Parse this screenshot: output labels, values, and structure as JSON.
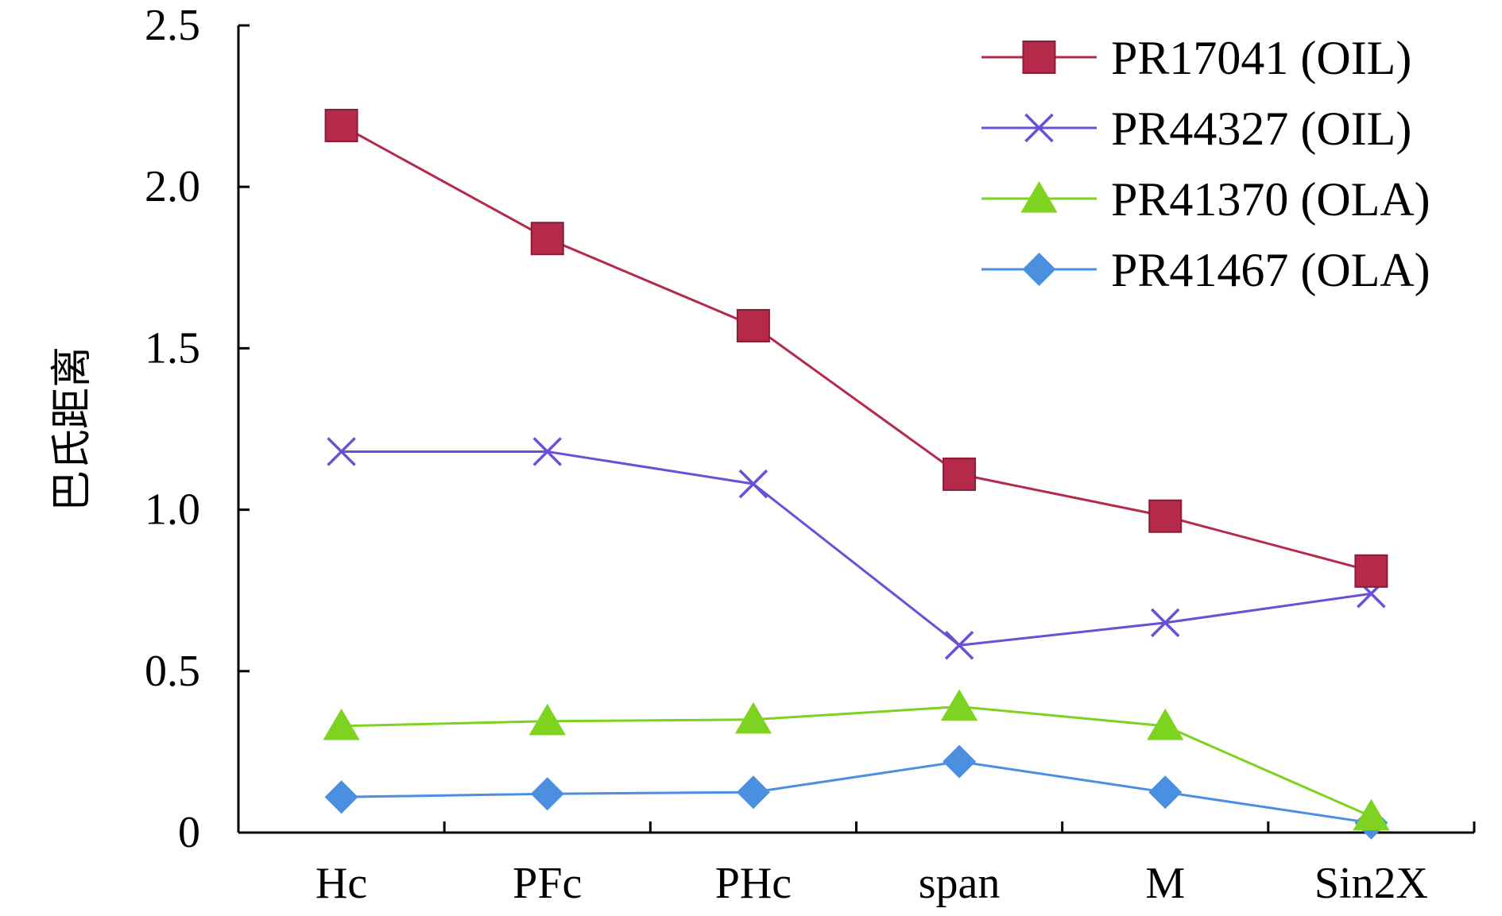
{
  "chart_data": {
    "type": "line",
    "title": "",
    "xlabel": "",
    "ylabel": "巴氏距离",
    "categories": [
      "Hc",
      "PFc",
      "PHc",
      "span",
      "M",
      "Sin2X"
    ],
    "ylim": [
      0,
      2.5
    ],
    "yticks": [
      0,
      0.5,
      1.0,
      1.5,
      2.0,
      2.5
    ],
    "ytick_labels": [
      "0",
      "0.5",
      "1.0",
      "1.5",
      "2.0",
      "2.5"
    ],
    "grid": false,
    "legend_position": "top-right",
    "series": [
      {
        "name": "PR17041 (OIL)",
        "marker": "square",
        "color": "#b5294a",
        "values": [
          2.19,
          1.84,
          1.57,
          1.11,
          0.98,
          0.81
        ]
      },
      {
        "name": "PR44327 (OIL)",
        "marker": "x",
        "color": "#6b4fd8",
        "values": [
          1.18,
          1.18,
          1.08,
          0.58,
          0.65,
          0.74
        ]
      },
      {
        "name": "PR41370 (OLA)",
        "marker": "triangle",
        "color": "#7ed321",
        "values": [
          0.33,
          0.345,
          0.35,
          0.39,
          0.33,
          0.05
        ]
      },
      {
        "name": "PR41467 (OLA)",
        "marker": "diamond",
        "color": "#4a8fe0",
        "values": [
          0.11,
          0.12,
          0.125,
          0.22,
          0.125,
          0.03
        ]
      }
    ]
  }
}
